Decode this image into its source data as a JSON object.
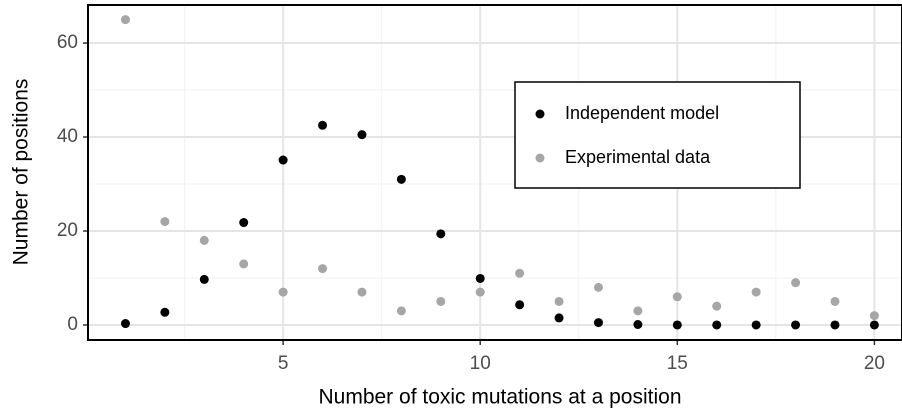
{
  "chart_data": {
    "type": "scatter",
    "x_label": "Number of toxic mutations at a position",
    "y_label": "Number of positions",
    "x": [
      1,
      2,
      3,
      4,
      5,
      6,
      7,
      8,
      9,
      10,
      11,
      12,
      13,
      14,
      15,
      16,
      17,
      18,
      19,
      20
    ],
    "series": [
      {
        "name": "Independent model",
        "color": "#000000",
        "values": [
          0.3,
          2.7,
          9.7,
          21.8,
          35.1,
          42.5,
          40.5,
          31,
          19.4,
          9.9,
          4.3,
          1.5,
          0.5,
          0.1,
          0,
          0,
          0,
          0,
          0,
          0
        ]
      },
      {
        "name": "Experimental data",
        "color": "#a6a6a6",
        "values": [
          65,
          22,
          18,
          13,
          7,
          12,
          7,
          3,
          5,
          7,
          11,
          5,
          8,
          3,
          6,
          4,
          7,
          9,
          5,
          2
        ]
      }
    ],
    "xlim": [
      0.05,
      20.7
    ],
    "ylim": [
      -3.2,
      68.1
    ],
    "xticks": [
      5,
      10,
      15,
      20
    ],
    "yticks": [
      0,
      20,
      40,
      60
    ],
    "x_minor_ticks": [
      2.5,
      7.5,
      12.5,
      17.5
    ],
    "y_minor_ticks": [
      10,
      30,
      50
    ],
    "grid": true,
    "legend_position": "right"
  }
}
